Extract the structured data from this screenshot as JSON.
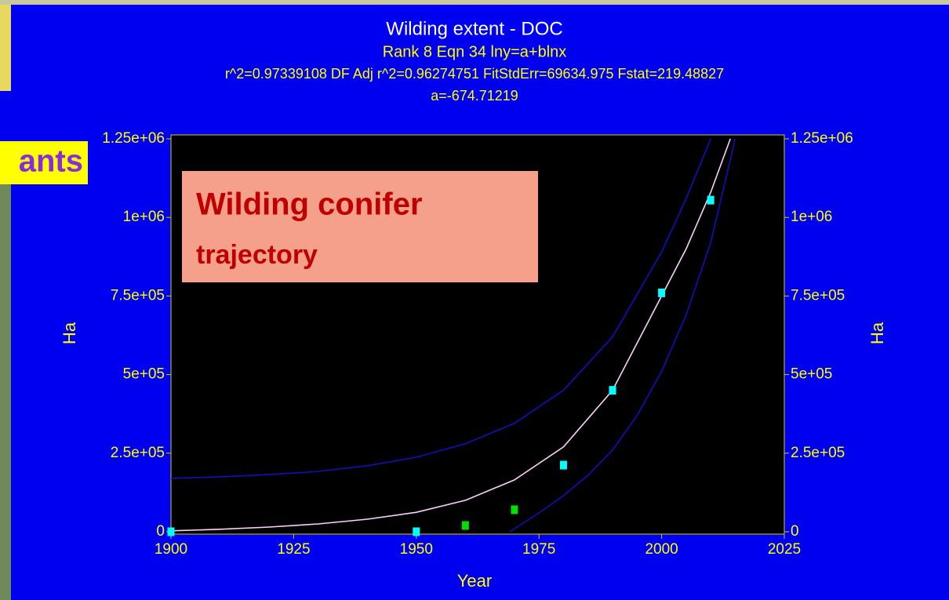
{
  "slide_text": "ants",
  "chart_data": {
    "type": "scatter",
    "title": "Wilding extent - DOC",
    "subtitle": "Rank 8  Eqn 34  lny=a+blnx",
    "stats": "r^2=0.97339108  DF Adj r^2=0.96274751  FitStdErr=69634.975  Fstat=219.48827",
    "parameters": "a=-674.71219",
    "x_label": "Year",
    "y_label": "Ha",
    "annotations": [
      "Wilding conifer",
      "trajectory"
    ],
    "x": [
      1900,
      1950,
      1960,
      1970,
      1980,
      1990,
      2000,
      2010
    ],
    "values": [
      0,
      0,
      20000,
      70000,
      212000,
      450000,
      760000,
      1055000
    ],
    "colors": [
      "#00ffff",
      "#00ffff",
      "#00e000",
      "#00e000",
      "#00ffff",
      "#00ffff",
      "#00ffff",
      "#00ffff"
    ],
    "curves": [
      {
        "color": "#ffd0ff",
        "x": [
          1900,
          1910,
          1920,
          1930,
          1940,
          1950,
          1960,
          1970,
          1980,
          1990,
          2000,
          2005,
          2010,
          2014
        ],
        "values": [
          3000,
          8000,
          15000,
          25000,
          40000,
          62000,
          100000,
          165000,
          270000,
          450000,
          750000,
          900000,
          1080000,
          1250000
        ]
      },
      {
        "color": "#1010c0",
        "x": [
          1900,
          1910,
          1920,
          1930,
          1940,
          1950,
          1960,
          1970,
          1980,
          1990,
          2000,
          2005,
          2010
        ],
        "values": [
          170000,
          175000,
          182000,
          192000,
          210000,
          237000,
          280000,
          345000,
          450000,
          620000,
          890000,
          1060000,
          1250000
        ]
      },
      {
        "color": "#1010c0",
        "x": [
          1969,
          1975,
          1980,
          1985,
          1990,
          1995,
          2000,
          2005,
          2010,
          2015
        ],
        "values": [
          0,
          60000,
          115000,
          180000,
          260000,
          370000,
          510000,
          690000,
          920000,
          1250000
        ]
      }
    ],
    "xlim": [
      1900,
      2025
    ],
    "xticks": [
      1900,
      1925,
      1950,
      1975,
      2000,
      2025
    ],
    "ylim": [
      0,
      1250000
    ],
    "yticks": [
      0,
      {
        "value": 250000,
        "label": "2.5e+05"
      },
      {
        "value": 500000,
        "label": "5e+05"
      },
      {
        "value": 750000,
        "label": "7.5e+05"
      },
      {
        "value": 1000000,
        "label": "1e+06"
      },
      {
        "value": 1250000,
        "label": "1.25e+06"
      }
    ]
  }
}
